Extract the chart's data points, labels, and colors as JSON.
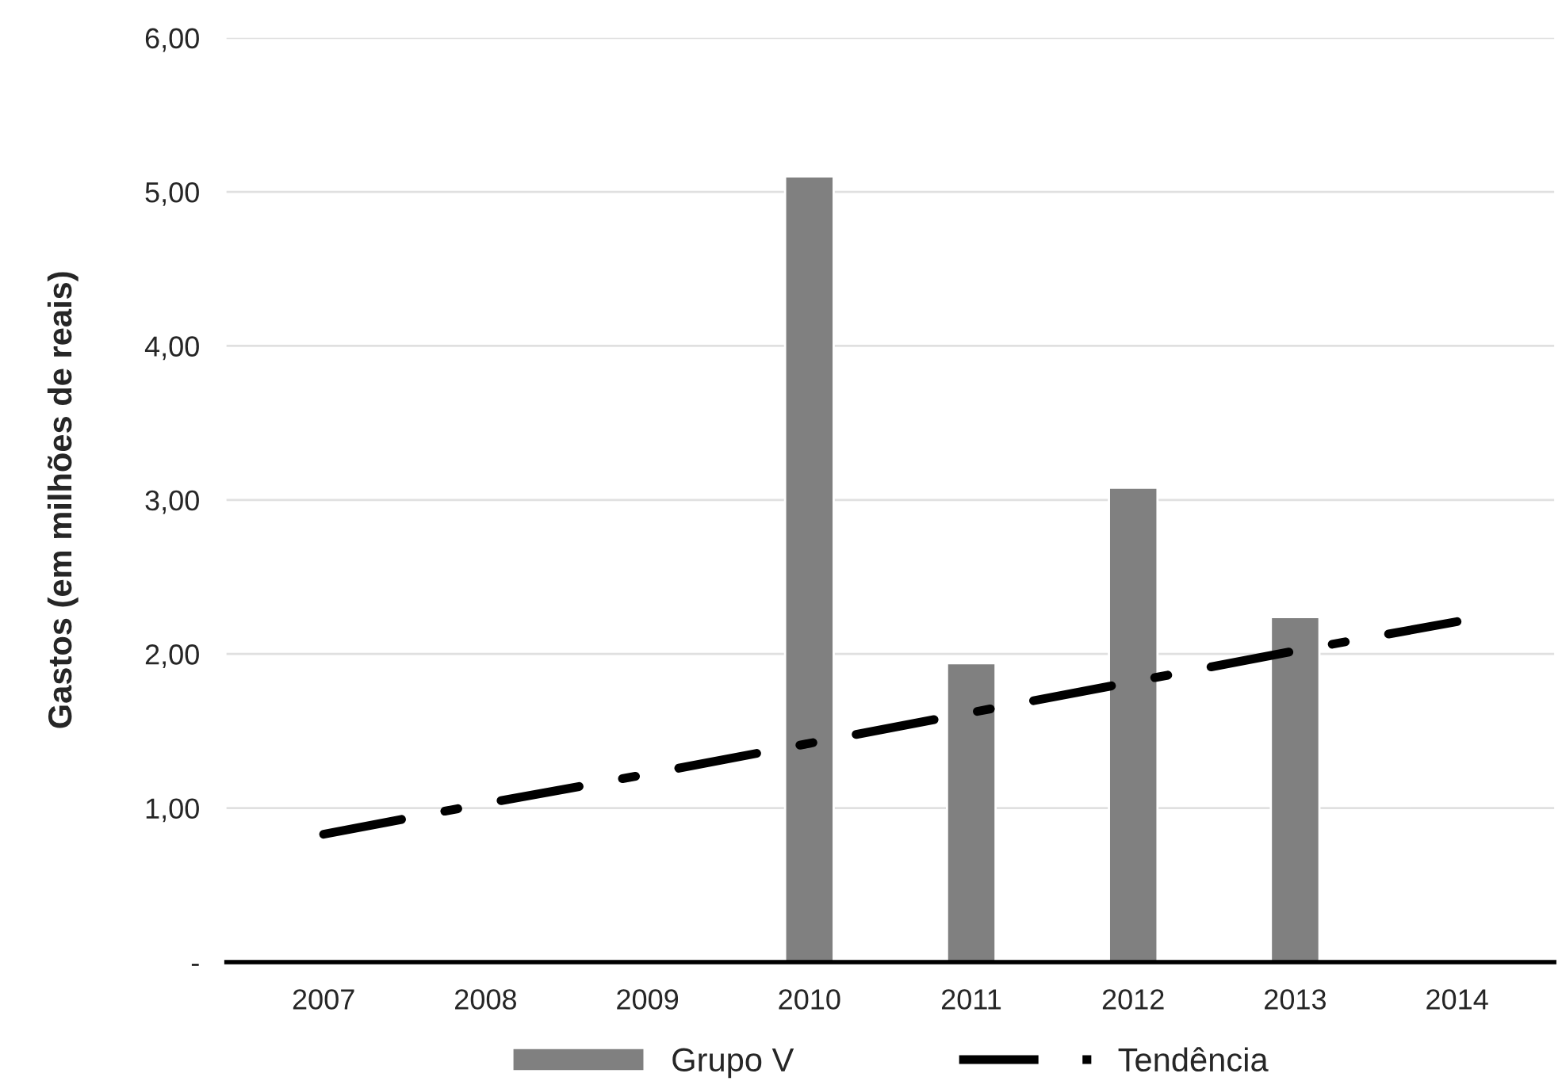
{
  "chart_data": {
    "type": "bar",
    "ylabel": "Gastos (em milhões de reais)",
    "categories": [
      "2007",
      "2008",
      "2009",
      "2010",
      "2011",
      "2012",
      "2013",
      "2014"
    ],
    "series": [
      {
        "name": "Grupo V",
        "color": "#808080",
        "values": [
          null,
          null,
          null,
          5.1,
          1.94,
          3.08,
          2.24,
          null
        ]
      },
      {
        "name": "Tendência",
        "type": "line",
        "color": "#000000",
        "line_style": "dashed",
        "values": [
          0.83,
          1.03,
          1.22,
          1.42,
          1.62,
          1.82,
          2.02,
          2.21
        ]
      }
    ],
    "ylim": [
      0,
      6
    ],
    "yticks": [
      {
        "value": 0,
        "label": "-"
      },
      {
        "value": 1,
        "label": "1,00"
      },
      {
        "value": 2,
        "label": "2,00"
      },
      {
        "value": 3,
        "label": "3,00"
      },
      {
        "value": 4,
        "label": "4,00"
      },
      {
        "value": 5,
        "label": "5,00"
      },
      {
        "value": 6,
        "label": "6,00"
      }
    ],
    "grid": "y",
    "legend": "bottom"
  }
}
